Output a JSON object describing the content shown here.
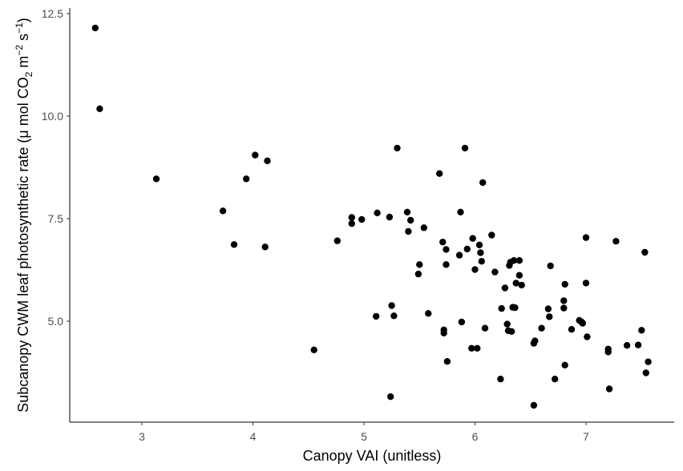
{
  "chart_data": {
    "type": "scatter",
    "xlabel": "Canopy VAI (unitless)",
    "ylabel": {
      "main": "Subcanopy CWM leaf photosynthetic rate (",
      "mu": "μ",
      "mol": " mol CO",
      "sub2": "2",
      "m": " m",
      "sup_m": "−2",
      "s": " s",
      "sup_s": "−1",
      "close": ")"
    },
    "xlim": [
      2.4,
      7.7
    ],
    "ylim": [
      2.5,
      12.7
    ],
    "x_ticks": [
      3,
      4,
      5,
      6,
      7
    ],
    "x_tick_labels": [
      "3",
      "4",
      "5",
      "6",
      "7"
    ],
    "y_ticks": [
      5.0,
      7.5,
      10.0,
      12.5
    ],
    "y_tick_labels": [
      "5.0",
      "7.5",
      "10.0",
      "12.5"
    ],
    "grid": false,
    "marker_color": "#000000",
    "points": [
      [
        2.58,
        12.15
      ],
      [
        2.62,
        10.18
      ],
      [
        3.13,
        8.47
      ],
      [
        3.73,
        7.69
      ],
      [
        3.83,
        6.87
      ],
      [
        3.94,
        8.47
      ],
      [
        4.02,
        9.05
      ],
      [
        4.11,
        6.81
      ],
      [
        4.13,
        8.91
      ],
      [
        4.55,
        4.3
      ],
      [
        4.76,
        6.96
      ],
      [
        4.89,
        7.53
      ],
      [
        4.89,
        7.38
      ],
      [
        4.98,
        7.48
      ],
      [
        5.11,
        5.12
      ],
      [
        5.12,
        7.64
      ],
      [
        5.23,
        7.54
      ],
      [
        5.24,
        3.16
      ],
      [
        5.25,
        5.38
      ],
      [
        5.27,
        5.13
      ],
      [
        5.3,
        9.22
      ],
      [
        5.39,
        7.66
      ],
      [
        5.4,
        7.19
      ],
      [
        5.42,
        7.46
      ],
      [
        5.49,
        6.15
      ],
      [
        5.5,
        6.38
      ],
      [
        5.54,
        7.28
      ],
      [
        5.58,
        5.19
      ],
      [
        5.68,
        8.6
      ],
      [
        5.71,
        6.93
      ],
      [
        5.72,
        4.79
      ],
      [
        5.72,
        4.71
      ],
      [
        5.74,
        6.75
      ],
      [
        5.75,
        4.02
      ],
      [
        5.74,
        6.38
      ],
      [
        5.86,
        6.61
      ],
      [
        5.87,
        7.66
      ],
      [
        5.88,
        4.98
      ],
      [
        5.91,
        9.22
      ],
      [
        5.93,
        6.76
      ],
      [
        5.97,
        4.34
      ],
      [
        5.98,
        7.02
      ],
      [
        6.0,
        6.26
      ],
      [
        6.02,
        4.34
      ],
      [
        6.04,
        6.86
      ],
      [
        6.05,
        6.67
      ],
      [
        6.06,
        6.46
      ],
      [
        6.07,
        8.38
      ],
      [
        6.09,
        4.83
      ],
      [
        6.15,
        7.1
      ],
      [
        6.18,
        6.2
      ],
      [
        6.23,
        3.59
      ],
      [
        6.24,
        5.31
      ],
      [
        6.27,
        5.81
      ],
      [
        6.29,
        4.93
      ],
      [
        6.3,
        4.77
      ],
      [
        6.31,
        6.36
      ],
      [
        6.32,
        6.44
      ],
      [
        6.33,
        4.75
      ],
      [
        6.34,
        5.34
      ],
      [
        6.35,
        6.48
      ],
      [
        6.36,
        5.33
      ],
      [
        6.37,
        5.93
      ],
      [
        6.4,
        6.12
      ],
      [
        6.4,
        6.48
      ],
      [
        6.42,
        5.88
      ],
      [
        6.53,
        2.95
      ],
      [
        6.53,
        4.46
      ],
      [
        6.54,
        4.52
      ],
      [
        6.6,
        4.83
      ],
      [
        6.66,
        5.3
      ],
      [
        6.67,
        5.11
      ],
      [
        6.68,
        6.35
      ],
      [
        6.72,
        3.59
      ],
      [
        6.8,
        5.32
      ],
      [
        6.8,
        5.5
      ],
      [
        6.81,
        5.9
      ],
      [
        6.81,
        3.93
      ],
      [
        6.87,
        4.8
      ],
      [
        6.94,
        5.02
      ],
      [
        6.96,
        4.98
      ],
      [
        6.97,
        4.95
      ],
      [
        7.0,
        5.93
      ],
      [
        7.0,
        7.04
      ],
      [
        7.01,
        4.62
      ],
      [
        7.2,
        4.25
      ],
      [
        7.2,
        4.32
      ],
      [
        7.21,
        3.35
      ],
      [
        7.27,
        6.95
      ],
      [
        7.37,
        4.41
      ],
      [
        7.47,
        4.42
      ],
      [
        7.5,
        4.78
      ],
      [
        7.53,
        6.68
      ],
      [
        7.54,
        3.74
      ],
      [
        7.56,
        4.01
      ]
    ]
  }
}
